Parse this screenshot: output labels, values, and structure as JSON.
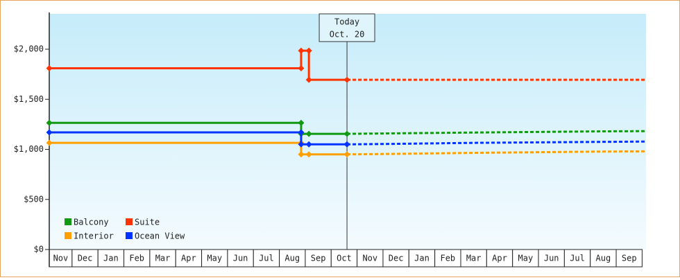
{
  "chart_data": {
    "type": "line",
    "categories": [
      "Nov",
      "Dec",
      "Jan",
      "Feb",
      "Mar",
      "Apr",
      "May",
      "Jun",
      "Jul",
      "Aug",
      "Sep",
      "Oct",
      "Nov",
      "Dec",
      "Jan",
      "Feb",
      "Mar",
      "Apr",
      "May",
      "Jun",
      "Jul",
      "Aug",
      "Sep"
    ],
    "xlim": [
      0.12,
      23.15
    ],
    "ylim": [
      0,
      2353
    ],
    "yticks": [
      {
        "value": 0,
        "label": "$0"
      },
      {
        "value": 500,
        "label": "$500"
      },
      {
        "value": 1000,
        "label": "$1,000"
      },
      {
        "value": 1500,
        "label": "$1,500"
      },
      {
        "value": 2000,
        "label": "$2,000"
      }
    ],
    "legend": "lower left",
    "annotation": {
      "x": 11.61,
      "lines": [
        "Today",
        "Oct. 20"
      ]
    },
    "series": [
      {
        "name": "Balcony",
        "color": "#119911",
        "x": [
          0.12,
          9.84,
          9.84,
          10.14,
          11.61
        ],
        "values": [
          1265,
          1265,
          1155,
          1155,
          1155
        ],
        "forecast_x": [
          11.61,
          13.5,
          16.5,
          21.5,
          23.15
        ],
        "forecast_values": [
          1155,
          1160,
          1168,
          1180,
          1182
        ]
      },
      {
        "name": "Suite",
        "color": "#ff3300",
        "x": [
          0.12,
          9.84,
          9.84,
          10.14,
          10.14,
          11.61
        ],
        "values": [
          1810,
          1810,
          1985,
          1985,
          1695,
          1695
        ],
        "forecast_x": [
          11.61,
          23.15
        ],
        "forecast_values": [
          1695,
          1695
        ]
      },
      {
        "name": "Interior",
        "color": "#ffa000",
        "x": [
          0.12,
          9.84,
          9.84,
          10.14,
          11.61
        ],
        "values": [
          1065,
          1065,
          950,
          950,
          950
        ],
        "forecast_x": [
          11.61,
          13.5,
          16.5,
          21.5,
          23.15
        ],
        "forecast_values": [
          950,
          955,
          965,
          978,
          980
        ]
      },
      {
        "name": "Ocean View",
        "color": "#0033ff",
        "x": [
          0.12,
          9.84,
          9.84,
          10.14,
          11.61
        ],
        "values": [
          1170,
          1170,
          1050,
          1050,
          1050
        ],
        "forecast_x": [
          11.61,
          13.5,
          16.5,
          21.5,
          23.15
        ],
        "forecast_values": [
          1050,
          1055,
          1065,
          1075,
          1078
        ]
      }
    ]
  }
}
